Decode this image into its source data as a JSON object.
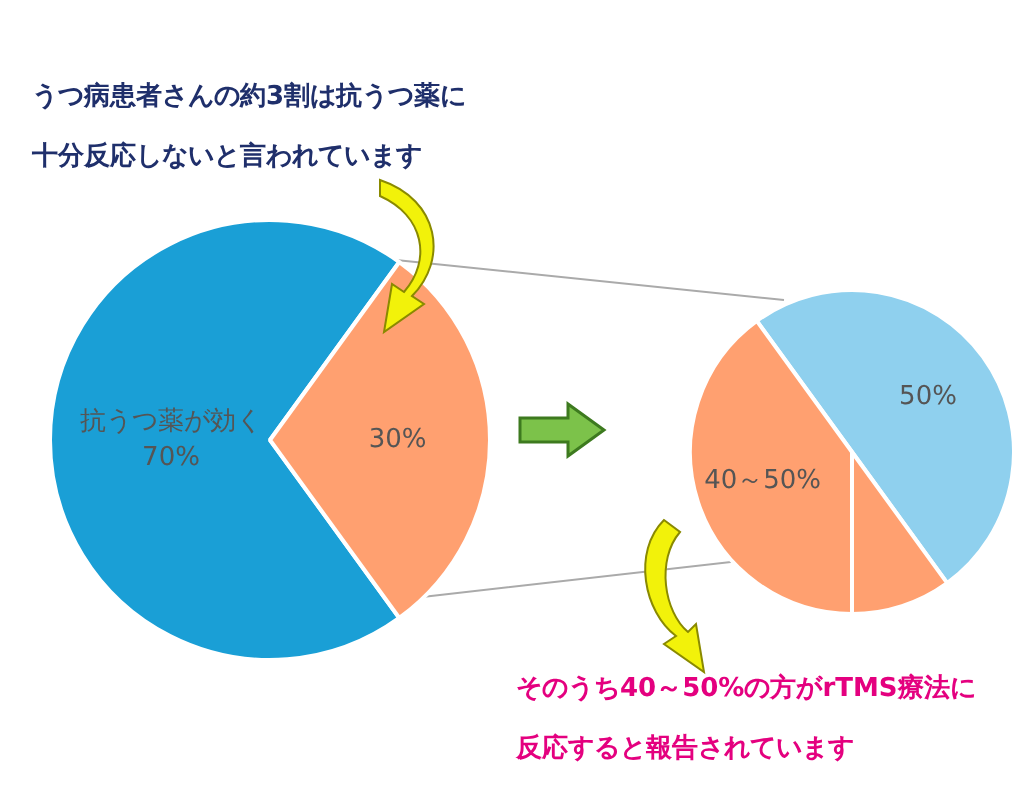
{
  "chart_data": [
    {
      "type": "pie",
      "title": "うつ病患者さんの約3割は抗うつ薬に十分反応しないと言われています",
      "categories": [
        "抗うつ薬が効く",
        null
      ],
      "values": [
        70,
        30
      ],
      "colors": [
        "#1a9fd6",
        "#ffa070"
      ],
      "value_labels": [
        "70%",
        "30%"
      ]
    },
    {
      "type": "pie",
      "annotations": [
        "そのうち40～50%の方がrTMS療法に反応すると報告されています"
      ],
      "categories": [
        null,
        null,
        null
      ],
      "values": [
        50,
        10,
        40
      ],
      "colors": [
        "#8fd0ee",
        "#ffa070",
        "#ffa070"
      ],
      "value_labels": [
        "50%",
        null,
        "40～50%"
      ]
    }
  ]
}
